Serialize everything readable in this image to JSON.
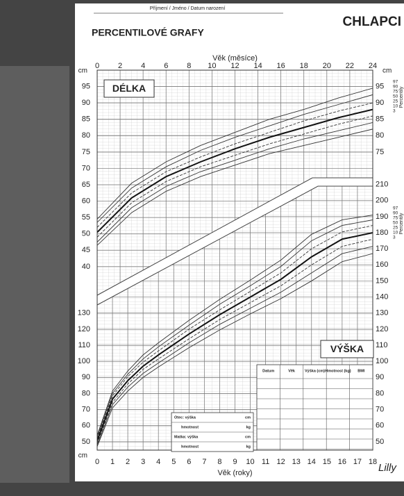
{
  "header": {
    "name_field": "Příjmení / Jméno / Datum narození",
    "title": "PERCENTILOVÉ GRAFY",
    "gender": "CHLAPCI",
    "logo": "Lilly"
  },
  "chart_data": [
    {
      "type": "line",
      "title": "DÉLKA",
      "x_label": "Věk (měsíce)",
      "y_unit": "cm",
      "percentile_label": "Percentily",
      "x": [
        0,
        3,
        6,
        9,
        12,
        15,
        18,
        21,
        24
      ],
      "xlim": [
        0,
        24
      ],
      "xticks": [
        0,
        2,
        4,
        6,
        8,
        10,
        12,
        14,
        16,
        18,
        20,
        22,
        24
      ],
      "ylim": [
        30,
        100
      ],
      "yticks": [
        40,
        45,
        50,
        55,
        60,
        65,
        70,
        75,
        80,
        85,
        90,
        95
      ],
      "yticks_right": [
        75,
        80,
        85,
        90,
        95
      ],
      "grid": true,
      "series": [
        {
          "name": "97",
          "color": "#333333",
          "values": [
            54.5,
            65.5,
            72,
            77,
            81,
            85,
            88,
            91.5,
            94.5
          ]
        },
        {
          "name": "90",
          "color": "#333333",
          "values": [
            53.5,
            64,
            70.5,
            75.5,
            79.5,
            83,
            86.5,
            89.5,
            92.5
          ]
        },
        {
          "name": "75",
          "color": "#333333",
          "values": [
            52,
            62.5,
            69,
            73.5,
            77.5,
            81,
            84.5,
            87.5,
            90
          ]
        },
        {
          "name": "50",
          "color": "#111111",
          "values": [
            50.5,
            61,
            67.5,
            72,
            76,
            79.5,
            82.5,
            85.5,
            88
          ]
        },
        {
          "name": "25",
          "color": "#333333",
          "values": [
            49,
            59.5,
            66,
            70.5,
            74,
            77.5,
            80.5,
            83.5,
            86
          ]
        },
        {
          "name": "10",
          "color": "#333333",
          "values": [
            47.5,
            58,
            64.5,
            69,
            72.5,
            76,
            79,
            81.5,
            84
          ]
        },
        {
          "name": "3",
          "color": "#333333",
          "values": [
            46.5,
            56.5,
            63,
            67.5,
            71,
            74.5,
            77,
            79.5,
            82
          ]
        }
      ]
    },
    {
      "type": "line",
      "title": "VÝŠKA",
      "x_label": "Věk (roky)",
      "y_unit": "cm",
      "percentile_label": "Percentily",
      "x": [
        0,
        1,
        2,
        3,
        4,
        6,
        8,
        10,
        12,
        14,
        16,
        18
      ],
      "xlim": [
        0,
        18
      ],
      "xticks": [
        0,
        1,
        2,
        3,
        4,
        5,
        6,
        7,
        8,
        9,
        10,
        11,
        12,
        13,
        14,
        15,
        16,
        17,
        18
      ],
      "ylim": [
        40,
        215
      ],
      "yticks": [
        50,
        60,
        70,
        80,
        90,
        100,
        110,
        120,
        130
      ],
      "yticks_right": [
        50,
        60,
        70,
        80,
        90,
        100,
        110,
        120,
        130,
        140,
        150,
        160,
        170,
        180,
        190,
        200,
        210
      ],
      "grid": true,
      "series": [
        {
          "name": "97",
          "color": "#333333",
          "values": [
            54,
            81.5,
            94,
            104,
            111.5,
            125.5,
            138.5,
            150.5,
            163,
            179,
            188,
            191
          ]
        },
        {
          "name": "90",
          "color": "#333333",
          "values": [
            53,
            80,
            92,
            101.5,
            109,
            122.5,
            135.5,
            147,
            159,
            175,
            184.5,
            188
          ]
        },
        {
          "name": "75",
          "color": "#333333",
          "values": [
            52,
            78.5,
            90.5,
            99.5,
            106.5,
            120,
            132,
            143.5,
            155,
            170,
            180.5,
            184.5
          ]
        },
        {
          "name": "50",
          "color": "#111111",
          "values": [
            50.5,
            76.5,
            88,
            97,
            104,
            117,
            129,
            140,
            151,
            165,
            176,
            180
          ]
        },
        {
          "name": "25",
          "color": "#333333",
          "values": [
            49,
            74.5,
            86,
            95,
            101.5,
            114,
            126,
            136.5,
            147,
            160,
            171.5,
            176
          ]
        },
        {
          "name": "10",
          "color": "#333333",
          "values": [
            48,
            73,
            84,
            92.5,
            99,
            111.5,
            123,
            133,
            143,
            155,
            167,
            171.5
          ]
        },
        {
          "name": "3",
          "color": "#333333",
          "values": [
            47,
            71,
            81.5,
            90,
            96.5,
            108.5,
            119.5,
            129.5,
            139,
            150,
            162,
            167
          ]
        }
      ]
    }
  ],
  "table": {
    "columns": [
      "Datum",
      "Věk",
      "Výška (cm)",
      "Hmotnost (kg)",
      "BMI"
    ]
  },
  "parents": {
    "rows": [
      [
        "Otec: výška",
        "cm"
      ],
      [
        "hmotnost",
        "kg"
      ],
      [
        "Matka: výška",
        "cm"
      ],
      [
        "hmotnost",
        "kg"
      ]
    ]
  }
}
